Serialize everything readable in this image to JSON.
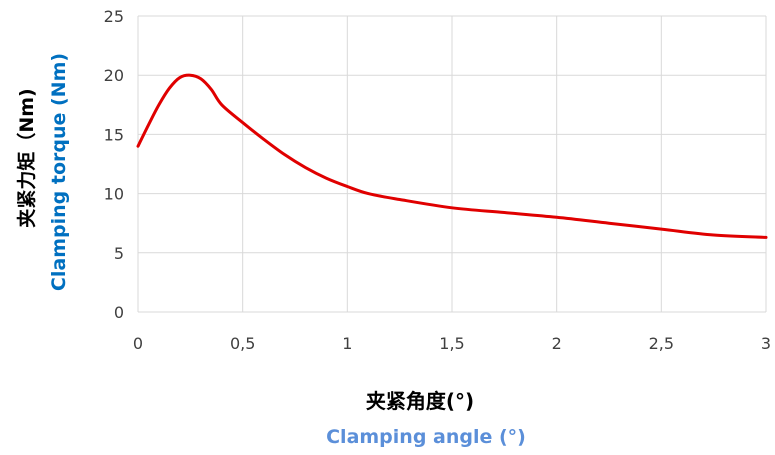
{
  "chart_data": {
    "type": "line",
    "xlim": [
      0,
      3
    ],
    "ylim": [
      0,
      25
    ],
    "x_ticks": [
      "0",
      "0,5",
      "1",
      "1,5",
      "2",
      "2,5",
      "3"
    ],
    "y_ticks": [
      "0",
      "5",
      "10",
      "15",
      "20",
      "25"
    ],
    "grid": true,
    "series": [
      {
        "color": "#E00000",
        "x": [
          0,
          0.05,
          0.1,
          0.15,
          0.2,
          0.25,
          0.3,
          0.35,
          0.4,
          0.5,
          0.6,
          0.7,
          0.8,
          0.9,
          1.0,
          1.1,
          1.25,
          1.5,
          1.75,
          2.0,
          2.25,
          2.5,
          2.75,
          3.0
        ],
        "y": [
          14.0,
          15.8,
          17.5,
          18.9,
          19.8,
          20.0,
          19.7,
          18.8,
          17.5,
          16.0,
          14.6,
          13.3,
          12.2,
          11.3,
          10.6,
          10.0,
          9.5,
          8.8,
          8.4,
          8.0,
          7.5,
          7.0,
          6.5,
          6.3
        ]
      }
    ],
    "ylabel_zh": "夹紧力矩（Nm)",
    "ylabel_en": "Clamping torque (Nm)",
    "xlabel_zh_text": "夹紧角度",
    "xlabel_zh_unit": "(°)",
    "xlabel_en": "Clamping angle (°)"
  },
  "colors": {
    "grid": "#D9D9D9",
    "tick_text": "#404040",
    "ylabel_en": "#0070C0",
    "xlabel_en": "#5B8FD9"
  }
}
